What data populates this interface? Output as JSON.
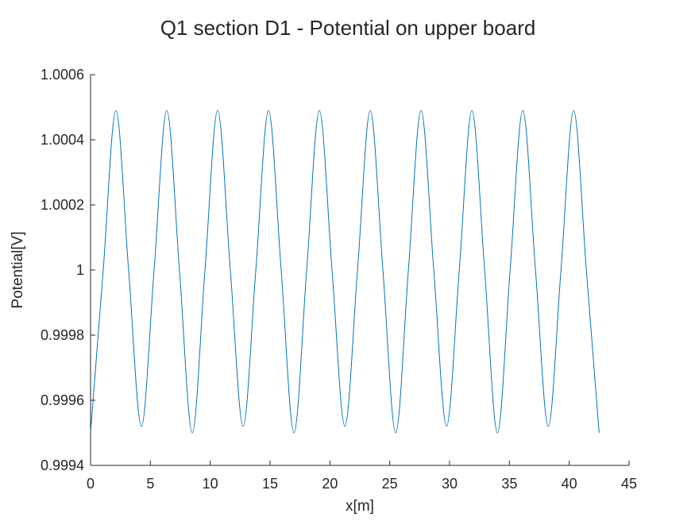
{
  "chart_data": {
    "type": "line",
    "title": "Q1 section D1 - Potential on upper board",
    "xlabel": "x[m]",
    "ylabel": "Potential[V]",
    "xlim": [
      0,
      45
    ],
    "ylim": [
      0.9994,
      1.0006
    ],
    "x_ticks": [
      0,
      5,
      10,
      15,
      20,
      25,
      30,
      35,
      40,
      45
    ],
    "x_tick_labels": [
      "0",
      "5",
      "10",
      "15",
      "20",
      "25",
      "30",
      "35",
      "40",
      "45"
    ],
    "y_ticks": [
      0.9994,
      0.9996,
      0.9998,
      1.0,
      1.0002,
      1.0004,
      1.0006
    ],
    "y_tick_labels": [
      "0.9994",
      "0.9996",
      "0.9998",
      "1",
      "1.0002",
      "1.0004",
      "1.0006"
    ],
    "grid": false,
    "legend": "none",
    "series": [
      {
        "color": "#0072BD",
        "x": [
          0.0,
          1.06,
          2.12,
          3.18,
          4.25,
          5.31,
          6.37,
          7.43,
          8.5,
          9.56,
          10.62,
          11.68,
          12.75,
          13.81,
          14.87,
          15.93,
          17.0,
          18.06,
          19.12,
          20.18,
          21.25,
          22.31,
          23.37,
          24.43,
          25.5,
          26.56,
          27.62,
          28.68,
          29.75,
          30.81,
          31.87,
          32.93,
          34.0,
          35.06,
          36.12,
          37.18,
          38.25,
          39.31,
          40.37,
          41.43,
          42.5
        ],
        "y": [
          0.9995,
          1.0,
          1.00049,
          1.0,
          0.99952,
          1.0,
          1.00049,
          1.0,
          0.9995,
          1.0,
          1.00049,
          1.0,
          0.99952,
          1.0,
          1.00049,
          1.0,
          0.9995,
          1.0,
          1.00049,
          1.0,
          0.99952,
          1.0,
          1.00049,
          1.0,
          0.9995,
          1.0,
          1.00049,
          1.0,
          0.99952,
          1.0,
          1.00049,
          1.0,
          0.9995,
          1.0,
          1.00049,
          1.0,
          0.99952,
          1.0,
          1.00049,
          1.0,
          0.9995
        ]
      }
    ]
  }
}
